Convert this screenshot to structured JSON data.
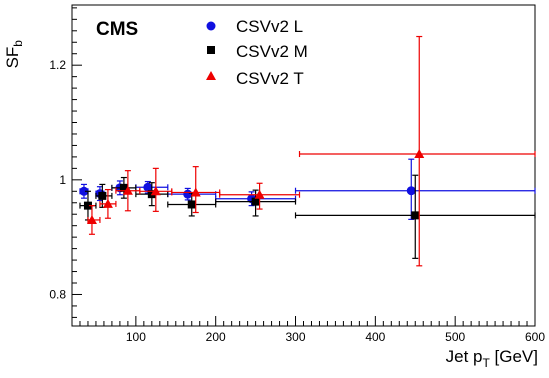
{
  "chart_data": {
    "type": "scatter",
    "experiment_label": "CMS",
    "ylabel": "SF",
    "ylabel_sub": "b",
    "xlabel": "Jet p",
    "xlabel_sub": "T",
    "xlabel_unit": " [GeV]",
    "xlim": [
      20,
      600
    ],
    "ylim": [
      0.745,
      1.305
    ],
    "x_ticks": [
      100,
      200,
      300,
      400,
      500,
      600
    ],
    "y_ticks": [
      0.8,
      1,
      1.2
    ],
    "y_tick_labels": [
      "0.8",
      "1",
      "1.2"
    ],
    "grid": false,
    "legend_position": "top-center",
    "series": [
      {
        "name": "CSVv2 L",
        "color": "#1010e0",
        "marker": "circle",
        "points": [
          {
            "x": 35,
            "xlo": 30,
            "xhi": 40,
            "y": 0.98,
            "elo": 0.012,
            "ehi": 0.012
          },
          {
            "x": 55,
            "xlo": 50,
            "xhi": 60,
            "y": 0.976,
            "elo": 0.012,
            "ehi": 0.012
          },
          {
            "x": 80,
            "xlo": 70,
            "xhi": 90,
            "y": 0.986,
            "elo": 0.012,
            "ehi": 0.012
          },
          {
            "x": 115,
            "xlo": 100,
            "xhi": 140,
            "y": 0.987,
            "elo": 0.01,
            "ehi": 0.01
          },
          {
            "x": 165,
            "xlo": 140,
            "xhi": 200,
            "y": 0.975,
            "elo": 0.01,
            "ehi": 0.01
          },
          {
            "x": 245,
            "xlo": 200,
            "xhi": 300,
            "y": 0.967,
            "elo": 0.012,
            "ehi": 0.012
          },
          {
            "x": 445,
            "xlo": 300,
            "xhi": 600,
            "y": 0.981,
            "elo": 0.05,
            "ehi": 0.055
          }
        ]
      },
      {
        "name": "CSVv2 M",
        "color": "#000000",
        "marker": "square",
        "points": [
          {
            "x": 40,
            "xlo": 30,
            "xhi": 50,
            "y": 0.955,
            "elo": 0.025,
            "ehi": 0.025
          },
          {
            "x": 58,
            "xlo": 50,
            "xhi": 70,
            "y": 0.972,
            "elo": 0.02,
            "ehi": 0.02
          },
          {
            "x": 85,
            "xlo": 70,
            "xhi": 100,
            "y": 0.986,
            "elo": 0.018,
            "ehi": 0.018
          },
          {
            "x": 120,
            "xlo": 100,
            "xhi": 140,
            "y": 0.975,
            "elo": 0.02,
            "ehi": 0.02
          },
          {
            "x": 170,
            "xlo": 140,
            "xhi": 200,
            "y": 0.957,
            "elo": 0.02,
            "ehi": 0.02
          },
          {
            "x": 250,
            "xlo": 200,
            "xhi": 300,
            "y": 0.962,
            "elo": 0.025,
            "ehi": 0.02
          },
          {
            "x": 450,
            "xlo": 300,
            "xhi": 600,
            "y": 0.938,
            "elo": 0.075,
            "ehi": 0.07
          }
        ]
      },
      {
        "name": "CSVv2 T",
        "color": "#ee0000",
        "marker": "triangle",
        "points": [
          {
            "x": 45,
            "xlo": 40,
            "xhi": 55,
            "y": 0.93,
            "elo": 0.025,
            "ehi": 0.025
          },
          {
            "x": 65,
            "xlo": 55,
            "xhi": 75,
            "y": 0.958,
            "elo": 0.025,
            "ehi": 0.025
          },
          {
            "x": 90,
            "xlo": 75,
            "xhi": 105,
            "y": 0.981,
            "elo": 0.035,
            "ehi": 0.035
          },
          {
            "x": 125,
            "xlo": 105,
            "xhi": 145,
            "y": 0.98,
            "elo": 0.035,
            "ehi": 0.04
          },
          {
            "x": 175,
            "xlo": 145,
            "xhi": 205,
            "y": 0.978,
            "elo": 0.035,
            "ehi": 0.045
          },
          {
            "x": 255,
            "xlo": 205,
            "xhi": 305,
            "y": 0.974,
            "elo": 0.025,
            "ehi": 0.02
          },
          {
            "x": 455,
            "xlo": 305,
            "xhi": 600,
            "y": 1.045,
            "elo": 0.195,
            "ehi": 0.205
          }
        ]
      }
    ]
  }
}
